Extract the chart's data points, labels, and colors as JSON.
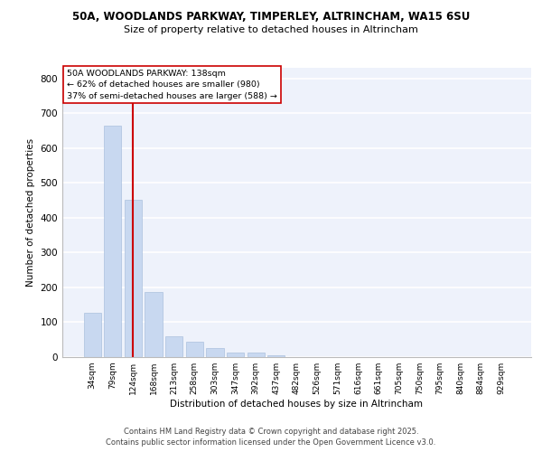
{
  "title1": "50A, WOODLANDS PARKWAY, TIMPERLEY, ALTRINCHAM, WA15 6SU",
  "title2": "Size of property relative to detached houses in Altrincham",
  "xlabel": "Distribution of detached houses by size in Altrincham",
  "ylabel": "Number of detached properties",
  "categories": [
    "34sqm",
    "79sqm",
    "124sqm",
    "168sqm",
    "213sqm",
    "258sqm",
    "303sqm",
    "347sqm",
    "392sqm",
    "437sqm",
    "482sqm",
    "526sqm",
    "571sqm",
    "616sqm",
    "661sqm",
    "705sqm",
    "750sqm",
    "795sqm",
    "840sqm",
    "884sqm",
    "929sqm"
  ],
  "values": [
    128,
    665,
    452,
    188,
    60,
    45,
    27,
    13,
    12,
    5,
    0,
    0,
    0,
    0,
    0,
    0,
    0,
    0,
    0,
    0,
    0
  ],
  "bar_color": "#c8d8f0",
  "bar_edge_color": "#a0b8d8",
  "vline_x_idx": 2,
  "vline_color": "#cc0000",
  "ylim": [
    0,
    830
  ],
  "yticks": [
    0,
    100,
    200,
    300,
    400,
    500,
    600,
    700,
    800
  ],
  "annotation_line1": "50A WOODLANDS PARKWAY: 138sqm",
  "annotation_line2": "← 62% of detached houses are smaller (980)",
  "annotation_line3": "37% of semi-detached houses are larger (588) →",
  "footer1": "Contains HM Land Registry data © Crown copyright and database right 2025.",
  "footer2": "Contains public sector information licensed under the Open Government Licence v3.0.",
  "background_color": "#eef2fb",
  "grid_color": "#ffffff"
}
